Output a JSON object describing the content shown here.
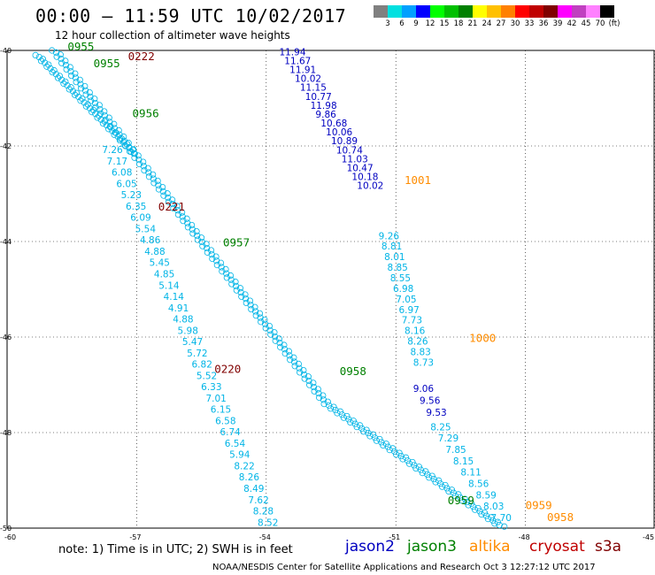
{
  "title": "00:00 – 11:59 UTC 10/02/2017",
  "subtitle": "12 hour collection of altimeter wave heights",
  "colorbar": {
    "colors": [
      "#808080",
      "#00e0e0",
      "#00a0ff",
      "#0000ff",
      "#00ff00",
      "#00c000",
      "#008000",
      "#ffff00",
      "#ffc000",
      "#ff8000",
      "#ff0000",
      "#c00000",
      "#800000",
      "#ff00ff",
      "#c040c0",
      "#ff80ff",
      "#000000"
    ],
    "labels": [
      "3",
      "6",
      "9",
      "12",
      "15",
      "18",
      "21",
      "24",
      "27",
      "30",
      "33",
      "36",
      "39",
      "42",
      "45",
      "70",
      "(ft)"
    ]
  },
  "axes": {
    "y_ticks": [
      "-40",
      "-42",
      "-44",
      "-46",
      "-48",
      "-50"
    ],
    "x_ticks": [
      "-60",
      "-57",
      "-54",
      "-51",
      "-48",
      "-45"
    ],
    "xlim": [
      -60,
      -45
    ],
    "ylim": [
      -50,
      -40
    ]
  },
  "note": "note:  1) Time is in UTC;  2) SWH is in feet",
  "satellites": [
    {
      "name": "jason2",
      "color": "#0000c0"
    },
    {
      "name": "jason3",
      "color": "#008000"
    },
    {
      "name": "altika",
      "color": "#ff8c00"
    },
    {
      "name": "cryosat",
      "color": "#c00000"
    },
    {
      "name": "s3a",
      "color": "#800000"
    }
  ],
  "credit": "NOAA/NESDIS Center for Satellite Applications and Research    Oct  3 12:27:12 UTC 2017",
  "tracks": [
    {
      "id": "jason2_track",
      "color": "#0000c0",
      "labels": [
        "11.94",
        "11.67",
        "11.91",
        "10.02",
        "11.15",
        "10.77",
        "11.98",
        "9.86",
        "10.68",
        "10.06",
        "10.89",
        "10.74",
        "11.03",
        "10.47",
        "10.18",
        "10.02"
      ]
    },
    {
      "id": "right_cyan_track",
      "color": "#00b4e6",
      "labels": [
        "9.26",
        "8.81",
        "8.01",
        "8.85",
        "8.55",
        "6.98",
        "7.05",
        "6.97",
        "7.73",
        "8.16",
        "8.26",
        "8.83",
        "8.73"
      ]
    },
    {
      "id": "right_blue_track",
      "color": "#0000c0",
      "labels": [
        "9.06",
        "9.56",
        "9.53"
      ]
    },
    {
      "id": "right_cyan_track_2",
      "color": "#00b4e6",
      "labels": [
        "8.25",
        "7.29",
        "7.85",
        "8.15",
        "8.11",
        "8.56",
        "8.59",
        "8.03",
        "7.70"
      ]
    },
    {
      "id": "left_track",
      "color": "#00b4e6",
      "labels": [
        "7.26",
        "7.17",
        "6.08",
        "6.05",
        "5.23",
        "6.35",
        "6.09",
        "5.54",
        "4.86",
        "4.88",
        "5.45",
        "4.85",
        "5.14",
        "4.14",
        "4.91",
        "4.88",
        "5.98",
        "5.47",
        "5.72",
        "6.82",
        "5.52",
        "6.33",
        "7.01",
        "6.15",
        "6.58",
        "6.74",
        "6.54",
        "5.94",
        "8.22",
        "8.26",
        "8.49",
        "7.62",
        "8.28",
        "8.52"
      ]
    }
  ],
  "time_labels": [
    {
      "text": "0955",
      "color": "#008000",
      "lon": -58.6,
      "lat": -40.0
    },
    {
      "text": "0955",
      "color": "#008000",
      "lon": -58.0,
      "lat": -40.35
    },
    {
      "text": "0222",
      "color": "#800000",
      "lon": -57.2,
      "lat": -40.2
    },
    {
      "text": "0956",
      "color": "#008000",
      "lon": -57.1,
      "lat": -41.4
    },
    {
      "text": "0221",
      "color": "#800000",
      "lon": -56.5,
      "lat": -43.35
    },
    {
      "text": "0957",
      "color": "#008000",
      "lon": -55.0,
      "lat": -44.1
    },
    {
      "text": "0220",
      "color": "#800000",
      "lon": -55.2,
      "lat": -46.75
    },
    {
      "text": "0958",
      "color": "#008000",
      "lon": -52.3,
      "lat": -46.8
    },
    {
      "text": "1001",
      "color": "#ff8c00",
      "lon": -50.8,
      "lat": -42.8
    },
    {
      "text": "1000",
      "color": "#ff8c00",
      "lon": -49.3,
      "lat": -46.1
    },
    {
      "text": "0959",
      "color": "#008000",
      "lon": -49.8,
      "lat": -49.5
    },
    {
      "text": "0959",
      "color": "#ff8c00",
      "lon": -48.0,
      "lat": -49.6
    },
    {
      "text": "0958",
      "color": "#ff8c00",
      "lon": -47.5,
      "lat": -49.85
    }
  ]
}
